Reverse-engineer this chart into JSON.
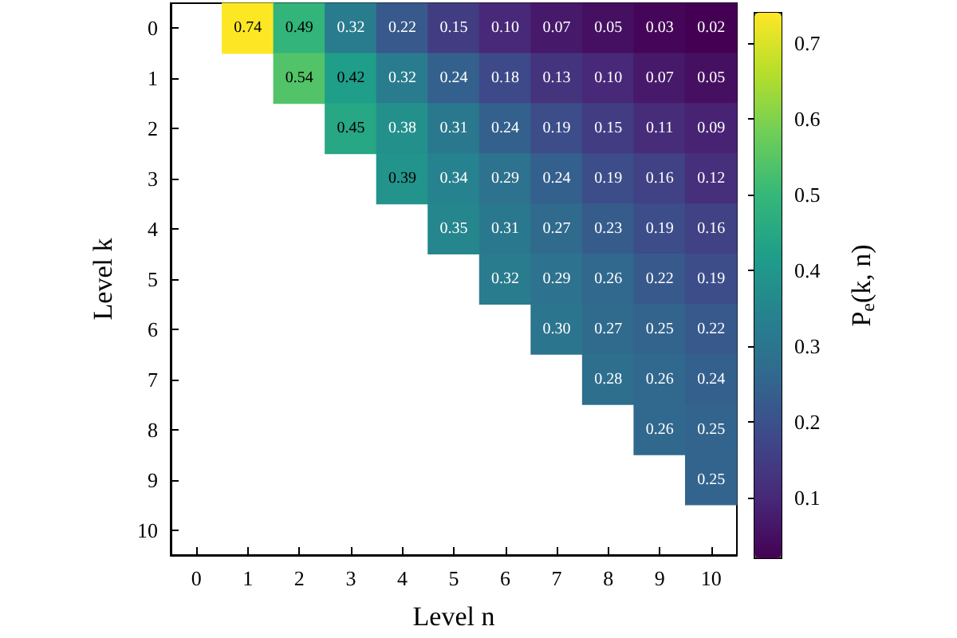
{
  "chart_data": {
    "type": "heatmap",
    "xlabel": "Level n",
    "ylabel": "Level k",
    "clabel": "P$_{e}$(k, n)",
    "categories": [
      "0",
      "1",
      "2",
      "3",
      "4",
      "5",
      "6",
      "7",
      "8",
      "9",
      "10"
    ],
    "y_categories": [
      "0",
      "1",
      "2",
      "3",
      "4",
      "5",
      "6",
      "7",
      "8",
      "9",
      "10"
    ],
    "cells": [
      [
        null,
        0.74,
        0.49,
        0.32,
        0.22,
        0.15,
        0.1,
        0.07,
        0.05,
        0.03,
        0.02
      ],
      [
        null,
        null,
        0.54,
        0.42,
        0.32,
        0.24,
        0.18,
        0.13,
        0.1,
        0.07,
        0.05
      ],
      [
        null,
        null,
        null,
        0.45,
        0.38,
        0.31,
        0.24,
        0.19,
        0.15,
        0.11,
        0.09
      ],
      [
        null,
        null,
        null,
        null,
        0.39,
        0.34,
        0.29,
        0.24,
        0.19,
        0.16,
        0.12
      ],
      [
        null,
        null,
        null,
        null,
        null,
        0.35,
        0.31,
        0.27,
        0.23,
        0.19,
        0.16
      ],
      [
        null,
        null,
        null,
        null,
        null,
        null,
        0.32,
        0.29,
        0.26,
        0.22,
        0.19
      ],
      [
        null,
        null,
        null,
        null,
        null,
        null,
        null,
        0.3,
        0.27,
        0.25,
        0.22
      ],
      [
        null,
        null,
        null,
        null,
        null,
        null,
        null,
        null,
        0.28,
        0.26,
        0.24
      ],
      [
        null,
        null,
        null,
        null,
        null,
        null,
        null,
        null,
        null,
        0.26,
        0.25
      ],
      [
        null,
        null,
        null,
        null,
        null,
        null,
        null,
        null,
        null,
        null,
        0.25
      ],
      [
        null,
        null,
        null,
        null,
        null,
        null,
        null,
        null,
        null,
        null,
        null
      ]
    ],
    "cell_labels": [
      [
        null,
        "0.74",
        "0.49",
        "0.32",
        "0.22",
        "0.15",
        "0.10",
        "0.07",
        "0.05",
        "0.03",
        "0.02"
      ],
      [
        null,
        null,
        "0.54",
        "0.42",
        "0.32",
        "0.24",
        "0.18",
        "0.13",
        "0.10",
        "0.07",
        "0.05"
      ],
      [
        null,
        null,
        null,
        "0.45",
        "0.38",
        "0.31",
        "0.24",
        "0.19",
        "0.15",
        "0.11",
        "0.09"
      ],
      [
        null,
        null,
        null,
        null,
        "0.39",
        "0.34",
        "0.29",
        "0.24",
        "0.19",
        "0.16",
        "0.12"
      ],
      [
        null,
        null,
        null,
        null,
        null,
        "0.35",
        "0.31",
        "0.27",
        "0.23",
        "0.19",
        "0.16"
      ],
      [
        null,
        null,
        null,
        null,
        null,
        null,
        "0.32",
        "0.29",
        "0.26",
        "0.22",
        "0.19"
      ],
      [
        null,
        null,
        null,
        null,
        null,
        null,
        null,
        "0.30",
        "0.27",
        "0.25",
        "0.22"
      ],
      [
        null,
        null,
        null,
        null,
        null,
        null,
        null,
        null,
        "0.28",
        "0.26",
        "0.24"
      ],
      [
        null,
        null,
        null,
        null,
        null,
        null,
        null,
        null,
        null,
        "0.26",
        "0.25"
      ],
      [
        null,
        null,
        null,
        null,
        null,
        null,
        null,
        null,
        null,
        null,
        "0.25"
      ],
      [
        null,
        null,
        null,
        null,
        null,
        null,
        null,
        null,
        null,
        null,
        null
      ]
    ],
    "clim": [
      0.02,
      0.74
    ],
    "cticks": [
      0.1,
      0.2,
      0.3,
      0.4,
      0.5,
      0.6,
      0.7
    ]
  }
}
